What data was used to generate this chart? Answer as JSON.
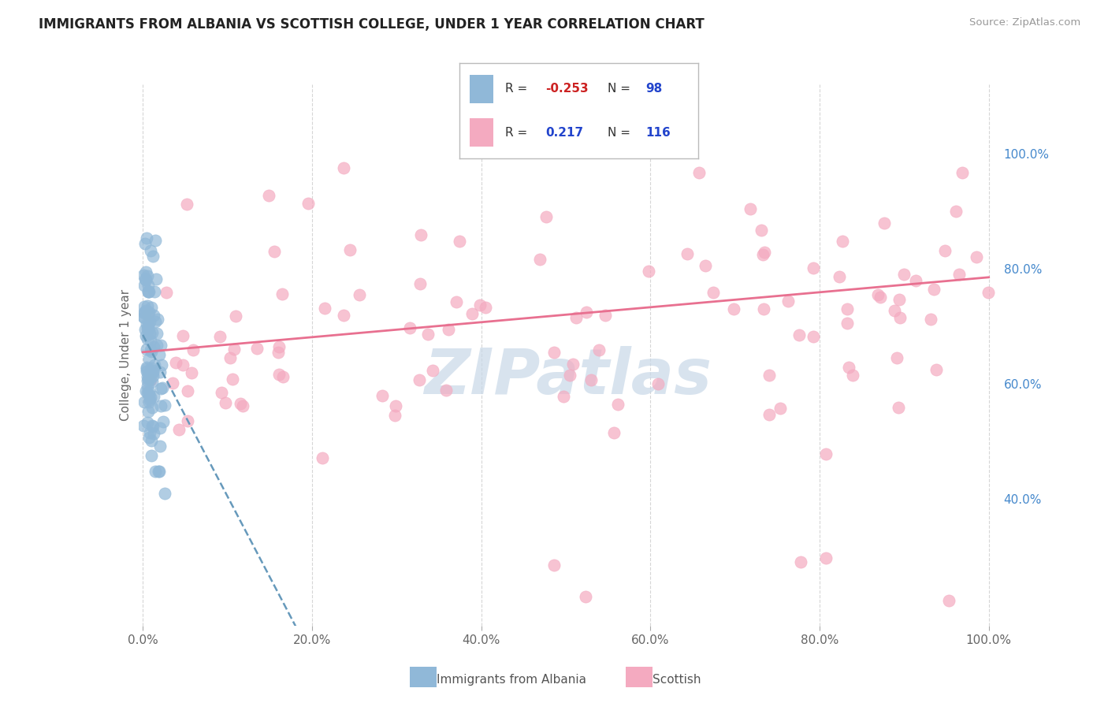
{
  "title": "IMMIGRANTS FROM ALBANIA VS SCOTTISH COLLEGE, UNDER 1 YEAR CORRELATION CHART",
  "source_text": "Source: ZipAtlas.com",
  "ylabel": "College, Under 1 year",
  "R_blue": -0.253,
  "N_blue": 98,
  "R_pink": 0.217,
  "N_pink": 116,
  "blue_color": "#90B8D8",
  "pink_color": "#F4AAC0",
  "blue_line_color": "#6699BB",
  "pink_line_color": "#E87090",
  "watermark_color": "#C8D8E8",
  "background_color": "#FFFFFF",
  "grid_color": "#CCCCCC",
  "title_color": "#222222",
  "source_color": "#999999",
  "right_tick_color": "#4488CC",
  "legend_label_blue": "Immigrants from Albania",
  "legend_label_pink": "Scottish",
  "xlim_min": -0.005,
  "xlim_max": 1.01,
  "ylim_min": 0.18,
  "ylim_max": 1.12,
  "yticks": [
    0.4,
    0.6,
    0.8,
    1.0
  ],
  "xticks": [
    0.0,
    0.2,
    0.4,
    0.6,
    0.8,
    1.0
  ]
}
